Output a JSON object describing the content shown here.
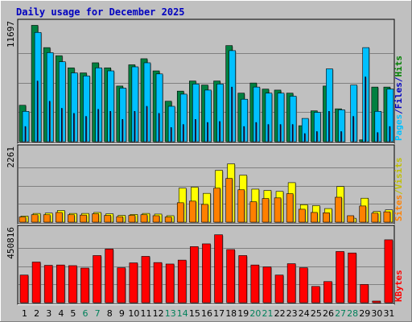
{
  "chart_data": {
    "type": "bar",
    "title": "Daily usage for December 2025",
    "categories": [
      "1",
      "2",
      "3",
      "4",
      "5",
      "6",
      "7",
      "8",
      "9",
      "10",
      "11",
      "12",
      "13",
      "14",
      "15",
      "16",
      "17",
      "18",
      "19",
      "20",
      "21",
      "22",
      "23",
      "24",
      "25",
      "26",
      "27",
      "28",
      "29",
      "30",
      "31"
    ],
    "weekend_days": [
      6,
      7,
      13,
      14,
      20,
      21,
      27,
      28
    ],
    "panels": [
      {
        "name": "hits-files-pages",
        "ymax_label": "11697",
        "ymax": 11697,
        "legend": [
          {
            "text": "Pages",
            "color": "#00c0ff"
          },
          {
            "text": "/",
            "color": "#0000c0"
          },
          {
            "text": "Files",
            "color": "#0000c0"
          },
          {
            "text": "/",
            "color": "#0000c0"
          },
          {
            "text": "Hits",
            "color": "#008000"
          }
        ],
        "series": [
          {
            "name": "Hits",
            "color": "#008040",
            "values": [
              3600,
              11500,
              9300,
              8500,
              7300,
              6800,
              7800,
              7300,
              5500,
              7600,
              8200,
              7000,
              4000,
              5000,
              6000,
              5600,
              6000,
              9500,
              4800,
              5800,
              5200,
              5100,
              4800,
              1580,
              3050,
              5500,
              3250,
              0,
              180,
              5400,
              5400
            ]
          },
          {
            "name": "Files",
            "color": "#00c0ff",
            "values": [
              3000,
              10800,
              8800,
              7900,
              6800,
              6500,
              7300,
              7000,
              5300,
              7400,
              7800,
              6700,
              3500,
              4700,
              5700,
              5100,
              5700,
              9000,
              4200,
              5400,
              4800,
              4800,
              4500,
              2300,
              2900,
              7200,
              3150,
              5600,
              9300,
              3000,
              5200
            ]
          },
          {
            "name": "Pages",
            "color": "#0000a0",
            "values": [
              1500,
              6000,
              4000,
              3300,
              2800,
              2500,
              3200,
              3000,
              2200,
              3000,
              3500,
              2800,
              1400,
              1700,
              2200,
              1900,
              2000,
              5400,
              1500,
              1900,
              1700,
              1700,
              1700,
              800,
              1000,
              3000,
              1000,
              2500,
              6400,
              900,
              1500
            ]
          }
        ]
      },
      {
        "name": "sites-visits",
        "ymax_label": "2261",
        "ymax": 2261,
        "legend": [
          {
            "text": "Sites",
            "color": "#ff8000"
          },
          {
            "text": "/",
            "color": "#c0c000"
          },
          {
            "text": "Visits",
            "color": "#c0c000"
          }
        ],
        "series": [
          {
            "name": "Visits",
            "color": "#ffff00",
            "values": [
              190,
              270,
              280,
              360,
              270,
              270,
              300,
              260,
              210,
              240,
              270,
              250,
              200,
              1050,
              1080,
              890,
              1600,
              1800,
              1450,
              1020,
              980,
              950,
              1220,
              540,
              510,
              420,
              1100,
              120,
              740,
              330,
              380
            ]
          },
          {
            "name": "Sites",
            "color": "#ff8000",
            "values": [
              160,
              230,
              230,
              300,
              230,
              220,
              260,
              210,
              170,
              210,
              230,
              200,
              160,
              600,
              650,
              550,
              1050,
              1350,
              1000,
              630,
              730,
              750,
              880,
              400,
              300,
              290,
              770,
              200,
              500,
              280,
              320
            ]
          }
        ]
      },
      {
        "name": "kbytes",
        "ymax_label": "450816",
        "ymax": 450816,
        "legend": [
          {
            "text": "KBytes",
            "color": "#ff0000"
          }
        ],
        "series": [
          {
            "name": "KBytes",
            "color": "#ff0000",
            "values": [
              170000,
              250000,
              230000,
              232000,
              228000,
              213000,
              290000,
              330000,
              215000,
              245000,
              285000,
              247000,
              238000,
              262000,
              345000,
              362000,
              418000,
              327000,
              290000,
              232000,
              220000,
              170000,
              240000,
              215000,
              100000,
              130000,
              315000,
              306000,
              112000,
              10000,
              387000
            ]
          }
        ]
      }
    ]
  }
}
